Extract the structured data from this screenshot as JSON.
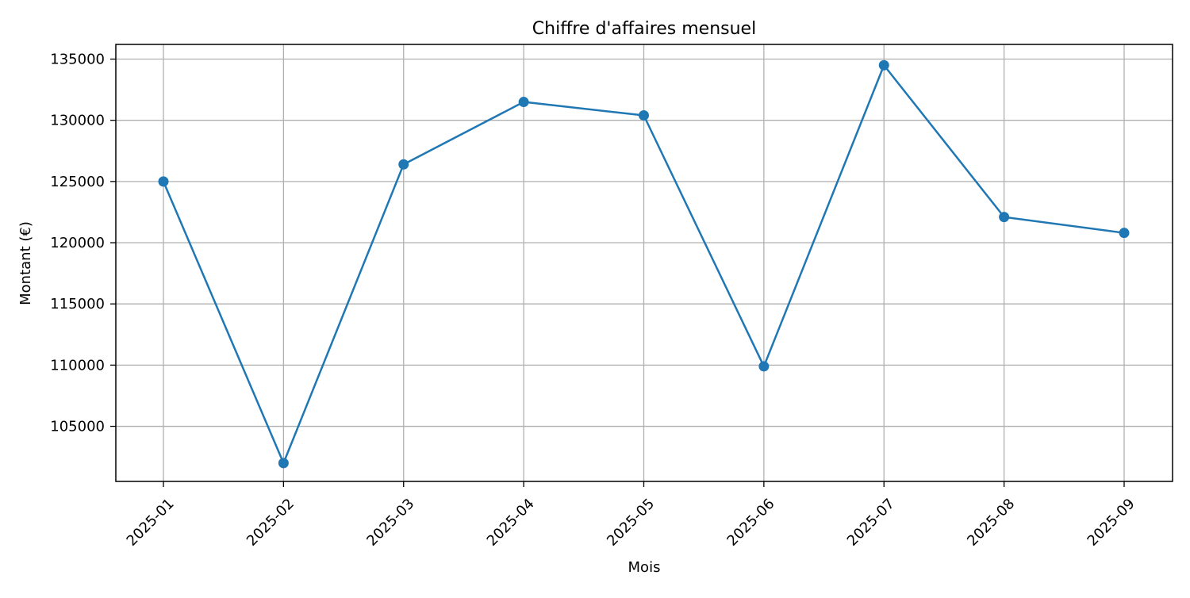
{
  "chart_data": {
    "type": "line",
    "title": "Chiffre d'affaires mensuel",
    "xlabel": "Mois",
    "ylabel": "Montant (€)",
    "categories": [
      "2025-01",
      "2025-02",
      "2025-03",
      "2025-04",
      "2025-05",
      "2025-06",
      "2025-07",
      "2025-08",
      "2025-09"
    ],
    "series": [
      {
        "values": [
          125000,
          102000,
          126400,
          131500,
          130400,
          109900,
          134500,
          122100,
          120800
        ]
      }
    ],
    "yticks": [
      105000,
      110000,
      115000,
      120000,
      125000,
      130000,
      135000
    ],
    "ylim": [
      100500,
      136200
    ],
    "grid": true,
    "legend": "none",
    "colors": {
      "line": "#1f77b4",
      "grid": "#b0b0b0",
      "axis": "#000000"
    }
  }
}
